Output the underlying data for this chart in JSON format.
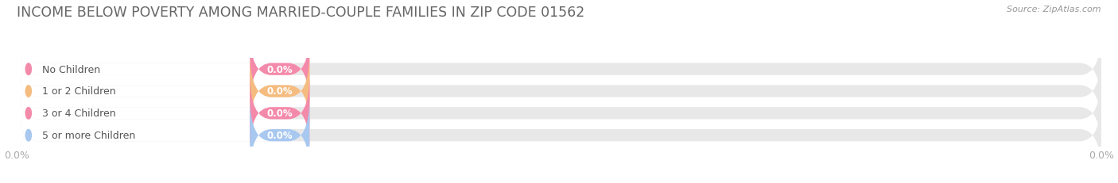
{
  "title": "INCOME BELOW POVERTY AMONG MARRIED-COUPLE FAMILIES IN ZIP CODE 01562",
  "source": "Source: ZipAtlas.com",
  "categories": [
    "No Children",
    "1 or 2 Children",
    "3 or 4 Children",
    "5 or more Children"
  ],
  "values": [
    0.0,
    0.0,
    0.0,
    0.0
  ],
  "bar_colors": [
    "#f48aaa",
    "#f5bc80",
    "#f48aaa",
    "#a8c8f0"
  ],
  "bar_bg_color": "#e8e8e8",
  "label_bg_color": "#ffffff",
  "fig_bg_color": "#ffffff",
  "title_color": "#666666",
  "label_color": "#555555",
  "value_text_color": "#ffffff",
  "tick_color": "#aaaaaa",
  "grid_color": "#dddddd",
  "title_fontsize": 12.5,
  "label_fontsize": 9,
  "value_fontsize": 8.5,
  "source_fontsize": 8
}
